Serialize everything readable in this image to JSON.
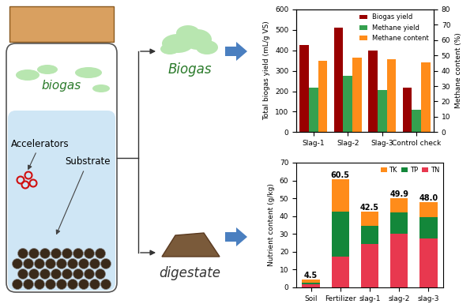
{
  "diagram": {
    "labels": {
      "gas": "biogas",
      "accelerators": "Accelerators",
      "substrate": "Substrate",
      "output_gas": "Biogas",
      "output_solid": "digestate"
    }
  },
  "chart_data": [
    {
      "type": "bar",
      "categories": [
        "Slag-1",
        "Slag-2",
        "Slag-3",
        "Control check"
      ],
      "ylabel": "Total biogas yield (mL/g VS)",
      "y2label": "Methane content (%)",
      "ylim": [
        0,
        600
      ],
      "yticks": [
        0,
        100,
        200,
        300,
        400,
        500,
        600
      ],
      "y2lim": [
        0,
        80
      ],
      "y2ticks": [
        0,
        10,
        20,
        30,
        40,
        50,
        60,
        70,
        80
      ],
      "legend": "upper right",
      "series": [
        {
          "name": "Biogas yield",
          "color": "#990000",
          "values": [
            425,
            508,
            397,
            218
          ]
        },
        {
          "name": "Methane yield",
          "color": "#35a04f",
          "values": [
            217,
            276,
            206,
            110
          ]
        },
        {
          "name": "Methane content",
          "color": "#ff8c1a",
          "values": [
            46.5,
            48.5,
            47.5,
            45.5
          ],
          "axis": "y2"
        }
      ]
    },
    {
      "type": "bar",
      "stacked": true,
      "categories": [
        "Soil",
        "Fertilizer",
        "slag-1",
        "slag-2",
        "slag-3"
      ],
      "ylabel": "Nutrient content (g/kg)",
      "ylim": [
        0,
        70
      ],
      "yticks": [
        0,
        10,
        20,
        30,
        40,
        50,
        60,
        70
      ],
      "legend": "upper right",
      "series": [
        {
          "name": "TN",
          "color": "#e8384f",
          "values": [
            1.5,
            17,
            24.5,
            30,
            27.5
          ]
        },
        {
          "name": "TP",
          "color": "#13873a",
          "values": [
            1.2,
            25.5,
            10,
            12.2,
            11.7
          ]
        },
        {
          "name": "TK",
          "color": "#ff8c1a",
          "values": [
            1.8,
            18,
            8,
            7.7,
            8.8
          ]
        }
      ],
      "totals": [
        4.5,
        60.5,
        42.5,
        49.9,
        48.0
      ],
      "total_labels": [
        "4.5",
        "60.5",
        "42.5",
        "49.9",
        "48.0"
      ]
    }
  ]
}
